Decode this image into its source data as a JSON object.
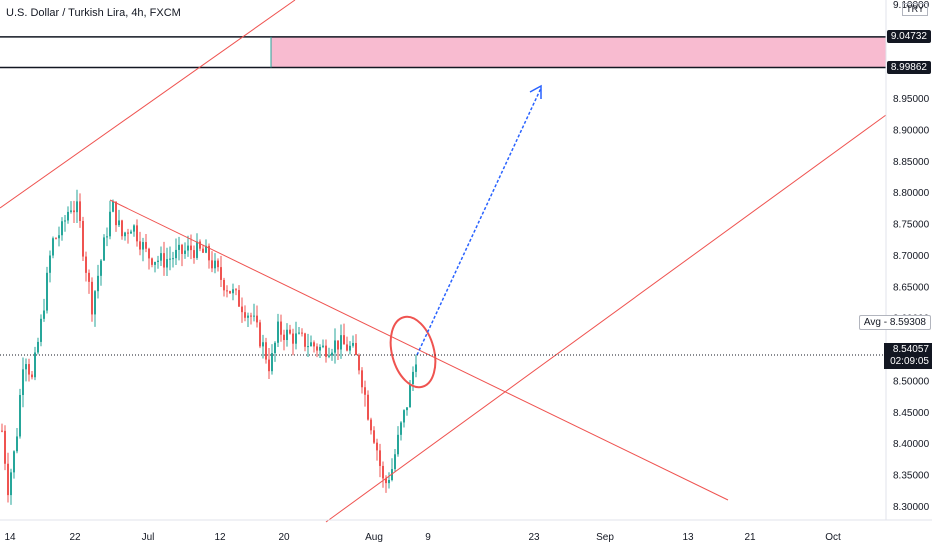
{
  "header": {
    "title": "U.S. Dollar / Turkish Lira, 4h, FXCM",
    "currency": "TRY"
  },
  "price_badges": {
    "zone_top": "9.04732",
    "zone_bottom": "8.99862",
    "avg": "Avg - 8.59308",
    "current_price": "8.54057",
    "countdown": "02:09:05"
  },
  "colors": {
    "up": "#26a69a",
    "down": "#ef5350",
    "trend_line": "#ef5350",
    "zone_fill": "#f8bbd0",
    "arrow": "#2962ff"
  },
  "chart_data": {
    "type": "candlestick",
    "title": "U.S. Dollar / Turkish Lira, 4h, FXCM",
    "x_ticks": [
      "14",
      "22",
      "Jul",
      "12",
      "20",
      "Aug",
      "9",
      "23",
      "Sep",
      "13",
      "21",
      "Oct"
    ],
    "y_ticks": [
      "8.30000",
      "8.35000",
      "8.40000",
      "8.45000",
      "8.50000",
      "8.55000",
      "8.60000",
      "8.65000",
      "8.70000",
      "8.75000",
      "8.80000",
      "8.85000",
      "8.90000",
      "8.95000",
      "9.00000",
      "9.10000"
    ],
    "ylim": [
      8.28,
      9.11
    ],
    "price_path": [
      {
        "t": 0,
        "p": 8.42
      },
      {
        "t": 6,
        "p": 8.33
      },
      {
        "t": 14,
        "p": 8.4
      },
      {
        "t": 22,
        "p": 8.55
      },
      {
        "t": 30,
        "p": 8.5
      },
      {
        "t": 40,
        "p": 8.6
      },
      {
        "t": 50,
        "p": 8.72
      },
      {
        "t": 60,
        "p": 8.74
      },
      {
        "t": 68,
        "p": 8.78
      },
      {
        "t": 76,
        "p": 8.77
      },
      {
        "t": 82,
        "p": 8.7
      },
      {
        "t": 90,
        "p": 8.62
      },
      {
        "t": 100,
        "p": 8.7
      },
      {
        "t": 110,
        "p": 8.78
      },
      {
        "t": 120,
        "p": 8.73
      },
      {
        "t": 130,
        "p": 8.75
      },
      {
        "t": 145,
        "p": 8.7
      },
      {
        "t": 160,
        "p": 8.69
      },
      {
        "t": 175,
        "p": 8.7
      },
      {
        "t": 190,
        "p": 8.71
      },
      {
        "t": 205,
        "p": 8.7
      },
      {
        "t": 220,
        "p": 8.66
      },
      {
        "t": 235,
        "p": 8.63
      },
      {
        "t": 250,
        "p": 8.6
      },
      {
        "t": 262,
        "p": 8.55
      },
      {
        "t": 268,
        "p": 8.52
      },
      {
        "t": 276,
        "p": 8.58
      },
      {
        "t": 290,
        "p": 8.57
      },
      {
        "t": 305,
        "p": 8.56
      },
      {
        "t": 320,
        "p": 8.55
      },
      {
        "t": 335,
        "p": 8.56
      },
      {
        "t": 350,
        "p": 8.55
      },
      {
        "t": 358,
        "p": 8.52
      },
      {
        "t": 366,
        "p": 8.45
      },
      {
        "t": 374,
        "p": 8.4
      },
      {
        "t": 382,
        "p": 8.33
      },
      {
        "t": 390,
        "p": 8.36
      },
      {
        "t": 398,
        "p": 8.42
      },
      {
        "t": 406,
        "p": 8.47
      },
      {
        "t": 414,
        "p": 8.54
      }
    ],
    "last_price": 8.54057,
    "avg_price": 8.59308,
    "resistance_zone": [
      8.99862,
      9.04732
    ]
  }
}
